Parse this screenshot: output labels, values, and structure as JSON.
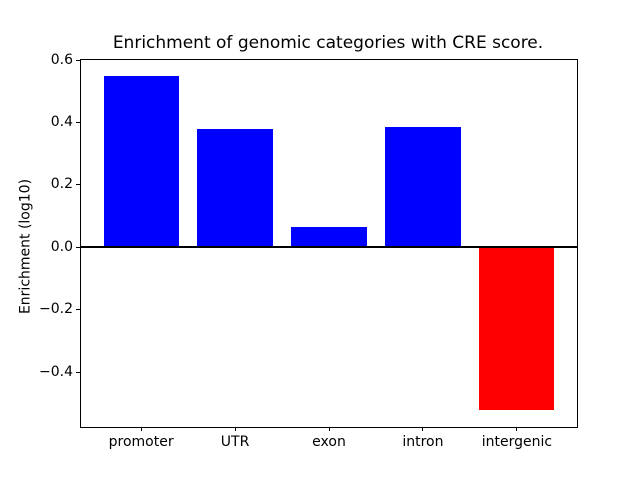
{
  "figure": {
    "background": "#ffffff"
  },
  "chart_data": {
    "type": "bar",
    "title": "Enrichment of genomic categories with CRE score.",
    "xlabel": "",
    "ylabel": "Enrichment (log10)",
    "categories": [
      "promoter",
      "UTR",
      "exon",
      "intron",
      "intergenic"
    ],
    "values": [
      0.55,
      0.38,
      0.065,
      0.385,
      -0.52
    ],
    "bar_colors": [
      "#0000ff",
      "#0000ff",
      "#0000ff",
      "#0000ff",
      "#ff0000"
    ],
    "positive_color": "#0000ff",
    "negative_color": "#ff0000",
    "axis_color": "#000000",
    "background_color": "#ffffff",
    "ylim": [
      -0.575,
      0.6
    ],
    "xlim": [
      -0.64,
      4.64
    ],
    "bar_width_fraction": 0.8,
    "grid": false,
    "legend": "none",
    "zero_line": {
      "value": 0,
      "color": "#000000",
      "thickness": 2
    },
    "yticks": [
      {
        "value": 0.6,
        "label": "0.6"
      },
      {
        "value": 0.4,
        "label": "0.4"
      },
      {
        "value": 0.2,
        "label": "0.2"
      },
      {
        "value": 0.0,
        "label": "0.0"
      },
      {
        "value": -0.2,
        "label": "−0.2"
      },
      {
        "value": -0.4,
        "label": "−0.4"
      }
    ]
  }
}
